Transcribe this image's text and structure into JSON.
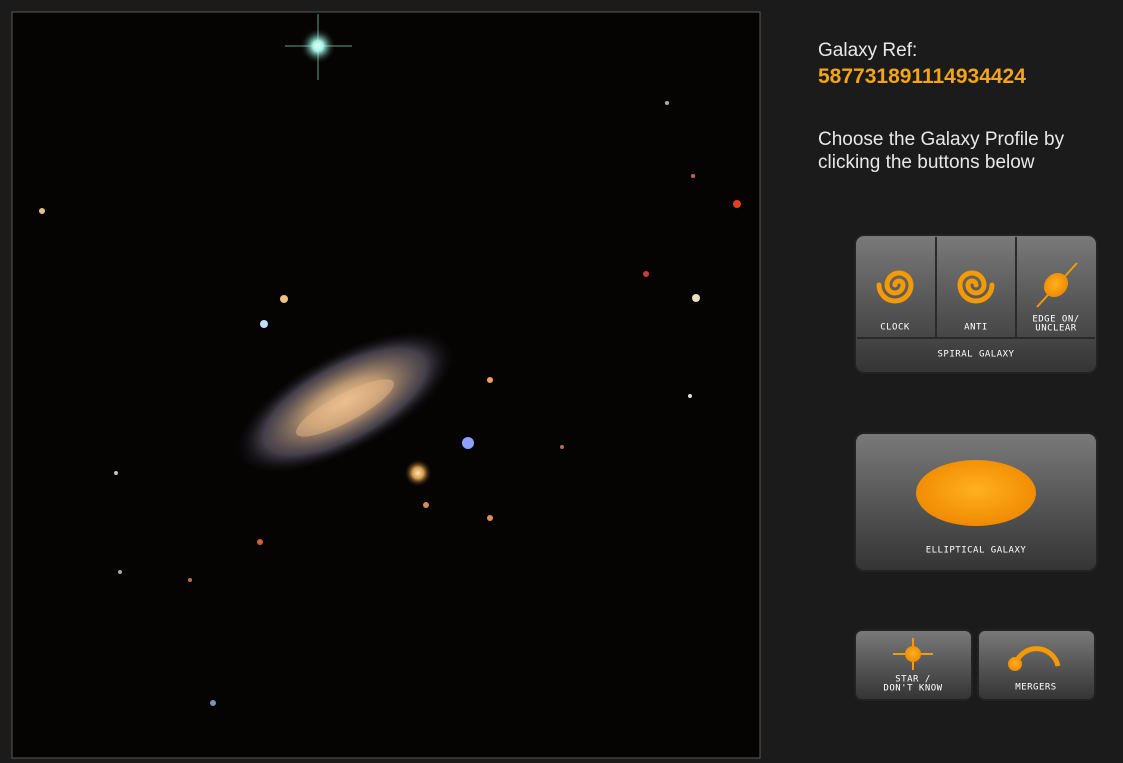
{
  "header": {
    "label": "Galaxy Ref:",
    "ref": "587731891114934424"
  },
  "instructions": "Choose the Galaxy Profile by clicking the buttons below",
  "buttons": {
    "clock": "CLOCK",
    "anti": "ANTI",
    "edge_on": [
      "EDGE ON/",
      "UNCLEAR"
    ],
    "spiral": "SPIRAL GALAXY",
    "elliptical": "ELLIPTICAL GALAXY",
    "star": [
      "STAR /",
      "DON'T KNOW"
    ],
    "mergers": "MERGERS"
  }
}
